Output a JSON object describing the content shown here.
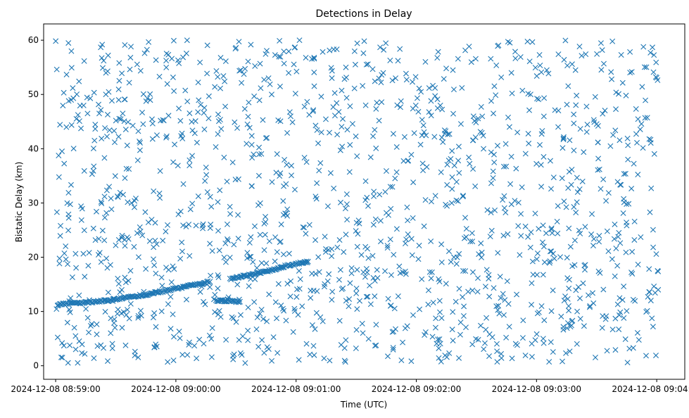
{
  "chart_data": {
    "type": "scatter",
    "title": "Detections in Delay",
    "xlabel": "Time (UTC)",
    "ylabel": "Bistatic Delay (km)",
    "x_unit": "datetime (UTC)",
    "xlim": [
      "2024-12-08 08:58:54",
      "2024-12-08 09:04:14"
    ],
    "ylim": [
      -2.5,
      63
    ],
    "x_ticks": [
      "2024-12-08 08:59:00",
      "2024-12-08 09:00:00",
      "2024-12-08 09:01:00",
      "2024-12-08 09:02:00",
      "2024-12-08 09:03:00",
      "2024-12-08 09:04:00"
    ],
    "y_ticks": [
      0,
      10,
      20,
      30,
      40,
      50,
      60
    ],
    "marker": "x",
    "color": "#1f77b4",
    "grid": false,
    "legend": "none",
    "series": [
      {
        "track_points": [
          {
            "x": "2024-12-08 08:59:01",
            "y": 11.2
          },
          {
            "x": "2024-12-08 08:59:05",
            "y": 11.4
          },
          {
            "x": "2024-12-08 08:59:09",
            "y": 11.5
          },
          {
            "x": "2024-12-08 08:59:13",
            "y": 11.6
          },
          {
            "x": "2024-12-08 08:59:17",
            "y": 11.7
          },
          {
            "x": "2024-12-08 08:59:21",
            "y": 11.9
          },
          {
            "x": "2024-12-08 08:59:25",
            "y": 12.0
          },
          {
            "x": "2024-12-08 08:59:29",
            "y": 12.2
          },
          {
            "x": "2024-12-08 08:59:33",
            "y": 12.4
          },
          {
            "x": "2024-12-08 08:59:37",
            "y": 12.6
          },
          {
            "x": "2024-12-08 08:59:41",
            "y": 12.9
          },
          {
            "x": "2024-12-08 08:59:45",
            "y": 13.1
          },
          {
            "x": "2024-12-08 08:59:49",
            "y": 13.4
          },
          {
            "x": "2024-12-08 08:59:53",
            "y": 13.7
          },
          {
            "x": "2024-12-08 08:59:57",
            "y": 14.0
          },
          {
            "x": "2024-12-08 09:00:01",
            "y": 14.3
          },
          {
            "x": "2024-12-08 09:00:05",
            "y": 14.6
          },
          {
            "x": "2024-12-08 09:00:09",
            "y": 14.9
          },
          {
            "x": "2024-12-08 09:00:13",
            "y": 15.2
          },
          {
            "x": "2024-12-08 09:00:17",
            "y": 15.5
          },
          {
            "x": "2024-12-08 09:00:20",
            "y": 12.0
          },
          {
            "x": "2024-12-08 09:00:24",
            "y": 12.0
          },
          {
            "x": "2024-12-08 09:00:28",
            "y": 11.9
          },
          {
            "x": "2024-12-08 09:00:32",
            "y": 11.8
          },
          {
            "x": "2024-12-08 09:00:27",
            "y": 16.0
          },
          {
            "x": "2024-12-08 09:00:31",
            "y": 16.3
          },
          {
            "x": "2024-12-08 09:00:35",
            "y": 16.6
          },
          {
            "x": "2024-12-08 09:00:39",
            "y": 16.9
          },
          {
            "x": "2024-12-08 09:00:43",
            "y": 17.2
          },
          {
            "x": "2024-12-08 09:00:47",
            "y": 17.6
          },
          {
            "x": "2024-12-08 09:00:51",
            "y": 18.0
          },
          {
            "x": "2024-12-08 09:00:55",
            "y": 18.4
          },
          {
            "x": "2024-12-08 09:00:59",
            "y": 18.7
          },
          {
            "x": "2024-12-08 09:01:03",
            "y": 19.0
          },
          {
            "x": "2024-12-08 09:01:06",
            "y": 19.2
          }
        ],
        "clutter_points": {
          "count": 1450,
          "x_range": [
            "2024-12-08 08:59:00",
            "2024-12-08 09:04:01"
          ],
          "y_range": [
            0.5,
            60
          ],
          "distribution": "roughly uniform noise detections"
        }
      }
    ]
  }
}
